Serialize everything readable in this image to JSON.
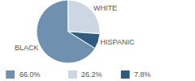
{
  "chart_data": {
    "type": "pie",
    "categories": [
      "BLACK",
      "WHITE",
      "HISPANIC"
    ],
    "values": [
      66.0,
      26.2,
      7.8
    ],
    "value_labels": [
      "66.0%",
      "26.2%",
      "7.8%"
    ],
    "colors": [
      "#7090b0",
      "#cdd7e3",
      "#2f5b80"
    ]
  }
}
